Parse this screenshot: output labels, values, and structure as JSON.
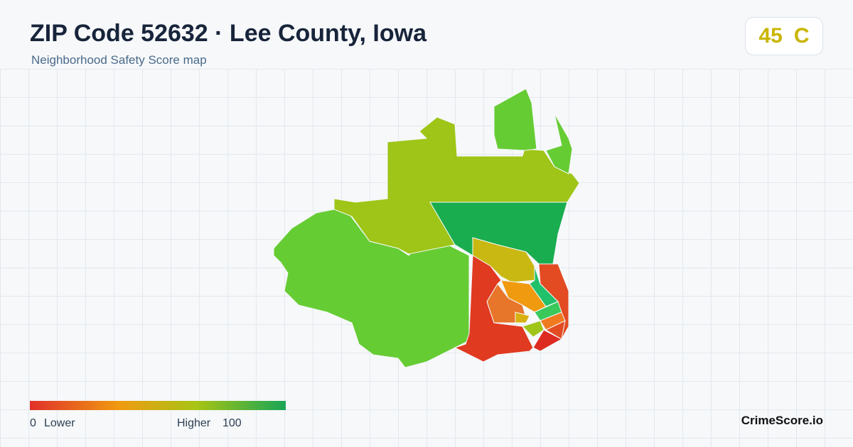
{
  "header": {
    "title": "ZIP Code 52632 · Lee County, Iowa",
    "subtitle": "Neighborhood Safety Score map"
  },
  "score": {
    "value": 45,
    "grade": "C"
  },
  "legend": {
    "min": 0,
    "min_label": "Lower",
    "max_label": "Higher",
    "max": 100
  },
  "footer": {
    "brand": "CrimeScore.io"
  }
}
